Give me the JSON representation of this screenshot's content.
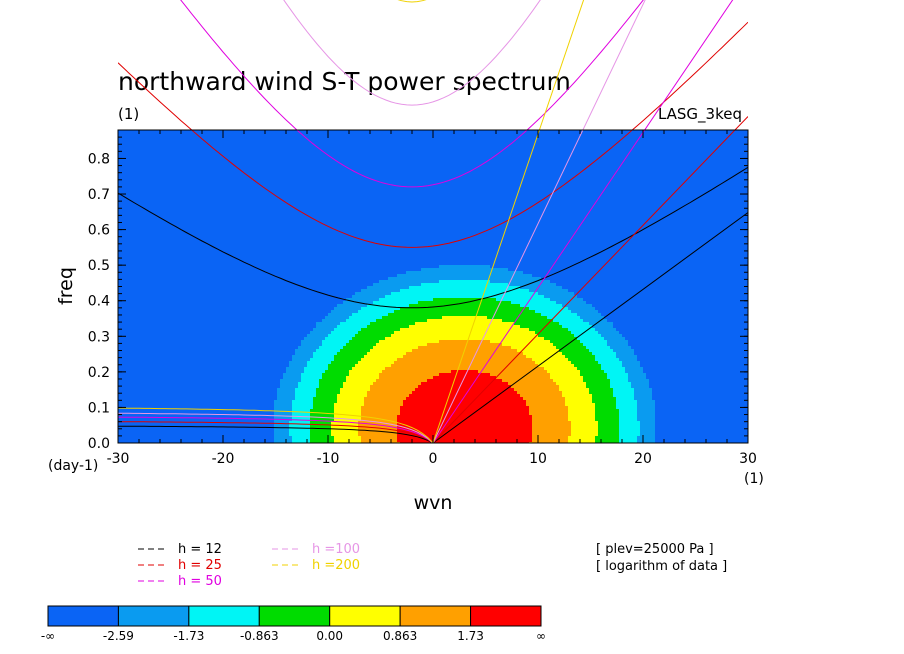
{
  "chart_data": {
    "type": "heatmap",
    "title": "northward wind S-T power spectrum",
    "unit_left": "(1)",
    "experiment": "LASG_3keq",
    "xlabel": "wvn",
    "ylabel": "freq",
    "x_unit": "(1)",
    "y_unit": "(day-1)",
    "xlim": [
      -30,
      30
    ],
    "ylim": [
      0.0,
      0.88
    ],
    "x_ticks": [
      "-30",
      "-20",
      "-10",
      "0",
      "10",
      "20",
      "30"
    ],
    "y_ticks": [
      "0.0",
      "0.1",
      "0.2",
      "0.3",
      "0.4",
      "0.5",
      "0.6",
      "0.7",
      "0.8"
    ],
    "contour_levels": [
      "-∞",
      "-2.59",
      "-1.73",
      "-0.863",
      "0.00",
      "0.863",
      "1.73",
      "∞"
    ],
    "level_colors": [
      "#0a64f5",
      "#0a9bf0",
      "#00f5f5",
      "#00dc00",
      "#ffff00",
      "#ffa000",
      "#ff0000"
    ],
    "annotations": [
      "[ plev=25000 Pa ]",
      "[ logarithm of data ]"
    ],
    "dispersion_curves": [
      {
        "label": "h = 12",
        "color": "#000000"
      },
      {
        "label": "h = 25",
        "color": "#e00000"
      },
      {
        "label": "h = 50",
        "color": "#e000e0"
      },
      {
        "label": "h =100",
        "color": "#e696e6"
      },
      {
        "label": "h =200",
        "color": "#f0d200"
      }
    ]
  }
}
